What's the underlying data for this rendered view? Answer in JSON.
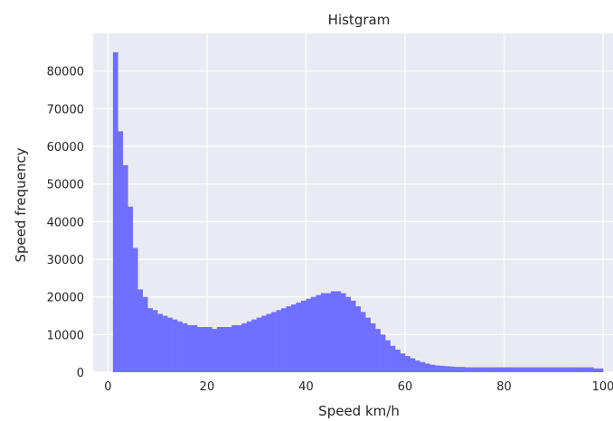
{
  "chart_data": {
    "type": "bar",
    "title": "Histgram",
    "xlabel": "Speed km/h",
    "ylabel": "Speed frequency",
    "xlim": [
      -3,
      102
    ],
    "ylim": [
      0,
      90000
    ],
    "xticks": [
      0,
      20,
      40,
      60,
      80,
      100
    ],
    "yticks": [
      0,
      10000,
      20000,
      30000,
      40000,
      50000,
      60000,
      70000,
      80000
    ],
    "grid": true,
    "colors": {
      "background": "#eaeaf2",
      "bar": "#7070ff",
      "grid": "#ffffff"
    },
    "bin_start": 1,
    "bin_width": 1,
    "values": [
      85000,
      64000,
      55000,
      44000,
      33000,
      22000,
      20000,
      17000,
      16500,
      15500,
      15000,
      14500,
      14000,
      13500,
      13000,
      12500,
      12500,
      12000,
      12000,
      12000,
      11500,
      12000,
      12000,
      12000,
      12500,
      12500,
      13000,
      13500,
      14000,
      14500,
      15000,
      15500,
      16000,
      16500,
      17000,
      17500,
      18000,
      18500,
      19000,
      19500,
      20000,
      20500,
      21000,
      21000,
      21500,
      21500,
      21000,
      20000,
      19000,
      17500,
      16000,
      14500,
      13000,
      11500,
      10000,
      8500,
      7000,
      6000,
      5000,
      4300,
      3700,
      3100,
      2700,
      2300,
      2000,
      1800,
      1700,
      1600,
      1500,
      1400,
      1400,
      1300,
      1300,
      1300,
      1300,
      1300,
      1300,
      1300,
      1300,
      1300,
      1300,
      1300,
      1300,
      1300,
      1300,
      1300,
      1300,
      1300,
      1300,
      1300,
      1300,
      1300,
      1300,
      1300,
      1300,
      1300,
      1300,
      1000,
      1000
    ]
  }
}
